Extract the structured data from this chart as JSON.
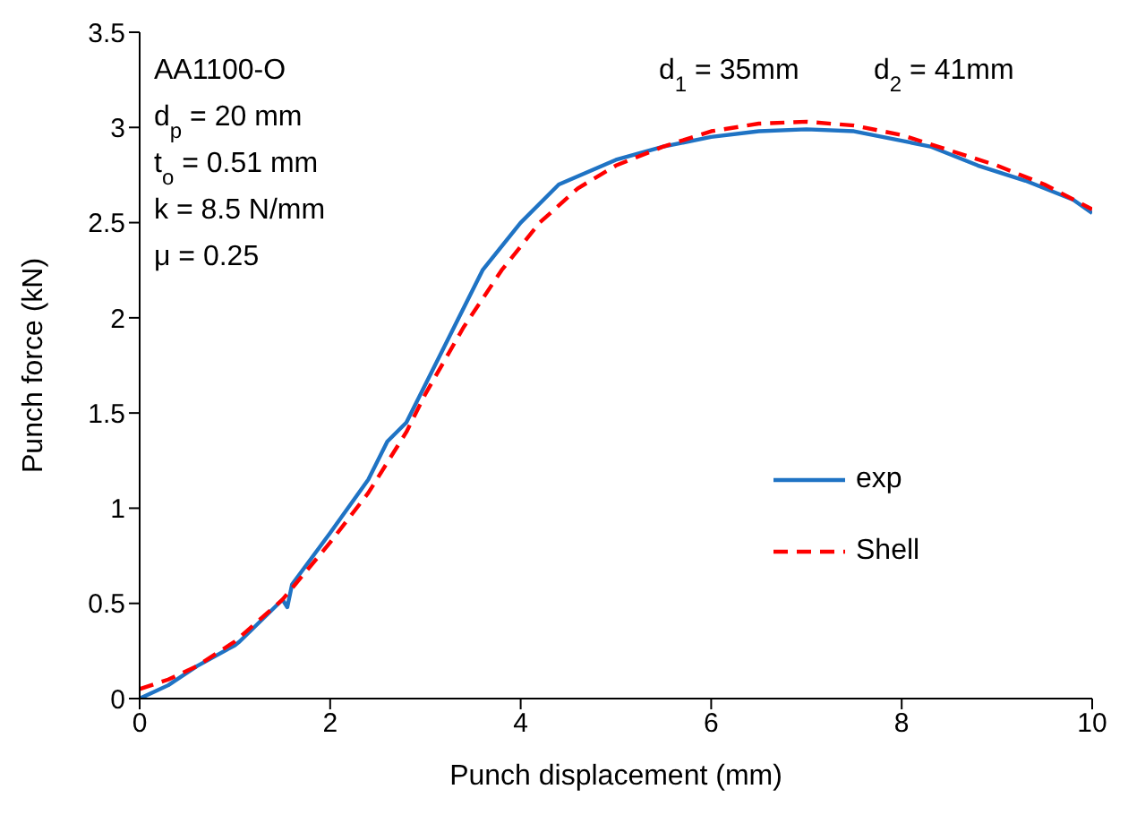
{
  "chart_data": {
    "type": "line",
    "xlabel": "Punch displacement (mm)",
    "ylabel": "Punch force (kN)",
    "xlim": [
      0,
      10
    ],
    "xticks": [
      0,
      2,
      4,
      6,
      8,
      10
    ],
    "ylim": [
      0,
      3.5
    ],
    "yticks": [
      0,
      0.5,
      1,
      1.5,
      2,
      2.5,
      3,
      3.5
    ],
    "grid": false,
    "legend": "right",
    "marker": "none",
    "annotations": [
      "AA1100-O",
      "d$_{p}$ = 20 mm",
      "t$_{o}$ = 0.51 mm",
      "k = 8.5 N/mm",
      "μ = 0.25",
      "d$_{1}$ = 35mm",
      "d$_{2}$ = 41mm"
    ],
    "series": [
      {
        "name": "exp",
        "color": "#1f73c4",
        "line_style": "solid",
        "x": [
          0,
          0.3,
          0.6,
          1,
          1.05,
          1.5,
          1.55,
          1.6,
          2,
          2.4,
          2.6,
          2.8,
          3,
          3.3,
          3.6,
          4,
          4.4,
          5,
          5.5,
          6,
          6.5,
          7,
          7.5,
          8,
          8.3,
          8.8,
          9.3,
          9.8,
          10
        ],
        "values": [
          0,
          0.07,
          0.17,
          0.28,
          0.3,
          0.52,
          0.48,
          0.6,
          0.87,
          1.15,
          1.35,
          1.45,
          1.65,
          1.95,
          2.25,
          2.5,
          2.7,
          2.83,
          2.9,
          2.95,
          2.98,
          2.99,
          2.98,
          2.93,
          2.9,
          2.8,
          2.72,
          2.62,
          2.55
        ]
      },
      {
        "name": "Shell",
        "color": "#ff0000",
        "line_style": "dashed",
        "x": [
          0,
          0.3,
          0.6,
          1,
          1.5,
          2,
          2.4,
          2.8,
          3,
          3.4,
          3.8,
          4.2,
          4.6,
          5,
          5.5,
          6,
          6.5,
          7,
          7.5,
          8,
          8.5,
          9,
          9.5,
          10
        ],
        "values": [
          0.05,
          0.1,
          0.17,
          0.3,
          0.52,
          0.82,
          1.08,
          1.4,
          1.6,
          1.95,
          2.25,
          2.5,
          2.68,
          2.8,
          2.9,
          2.98,
          3.02,
          3.03,
          3.01,
          2.96,
          2.88,
          2.8,
          2.7,
          2.57
        ]
      }
    ]
  }
}
